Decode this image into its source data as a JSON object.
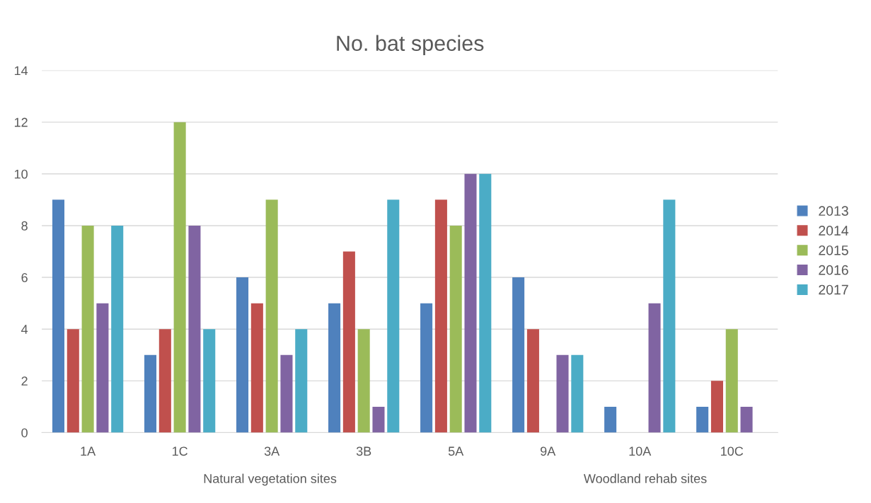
{
  "chart_data": {
    "type": "bar",
    "title": "No. bat species",
    "categories": [
      "1A",
      "1C",
      "3A",
      "3B",
      "5A",
      "9A",
      "10A",
      "10C"
    ],
    "series": [
      {
        "name": "2013",
        "color": "#4f81bd",
        "values": [
          9,
          3,
          6,
          5,
          5,
          6,
          1,
          1
        ]
      },
      {
        "name": "2014",
        "color": "#c0504d",
        "values": [
          4,
          4,
          5,
          7,
          9,
          4,
          0,
          2
        ]
      },
      {
        "name": "2015",
        "color": "#9bbb59",
        "values": [
          8,
          12,
          9,
          4,
          8,
          0,
          0,
          4
        ]
      },
      {
        "name": "2016",
        "color": "#8064a2",
        "values": [
          5,
          8,
          3,
          1,
          10,
          3,
          5,
          1
        ]
      },
      {
        "name": "2017",
        "color": "#4bacc6",
        "values": [
          8,
          4,
          4,
          9,
          10,
          3,
          9,
          0
        ]
      }
    ],
    "ylim": [
      0,
      14
    ],
    "yticks": [
      0,
      2,
      4,
      6,
      8,
      10,
      12,
      14
    ],
    "grid": "y",
    "legend": "right",
    "annotations": [
      "Natural vegetation sites",
      "Woodland rehab sites"
    ]
  }
}
